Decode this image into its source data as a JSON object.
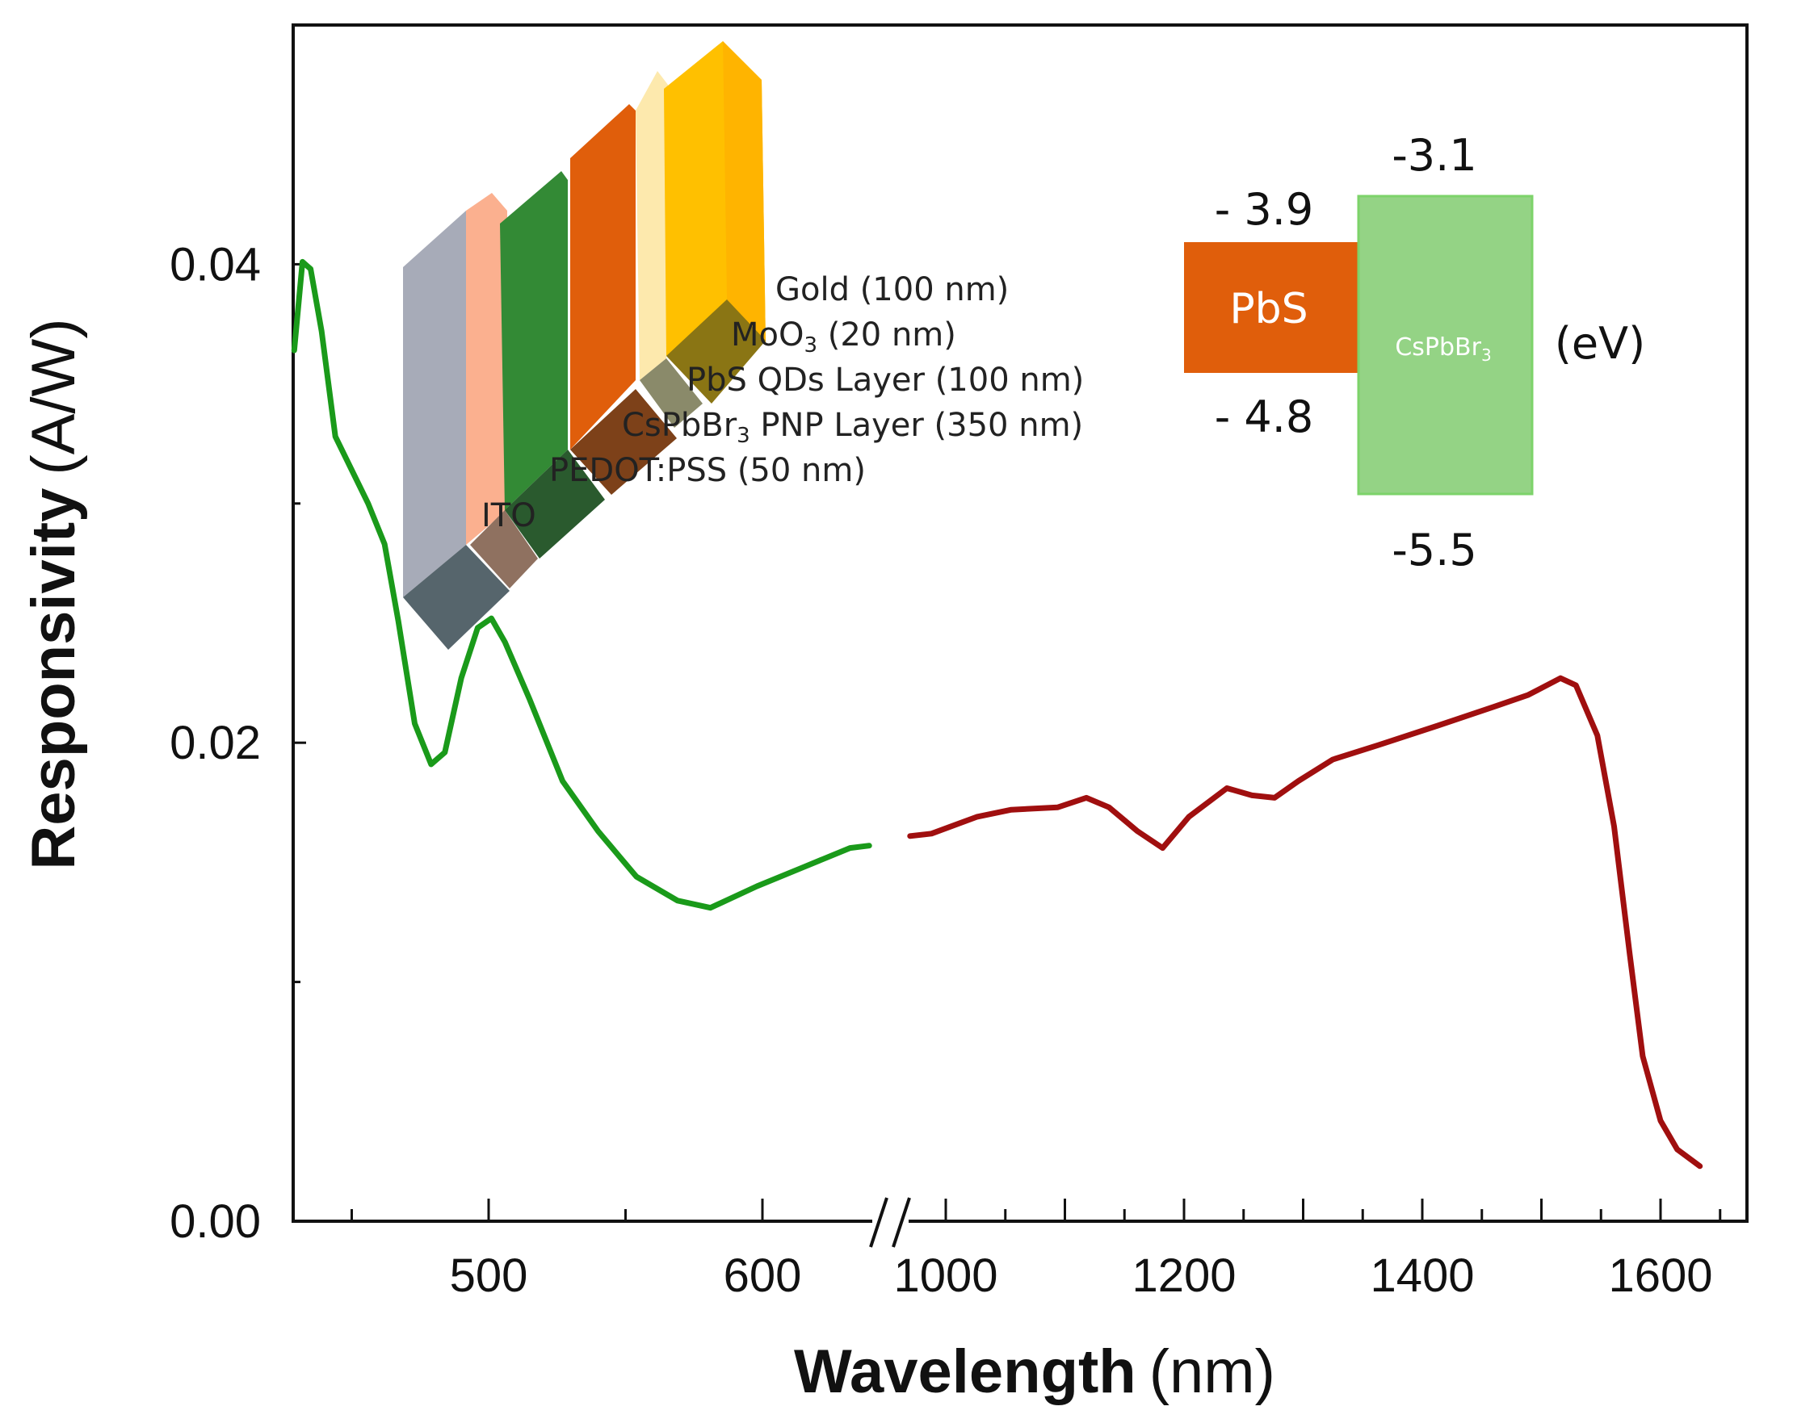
{
  "chart_data": {
    "type": "line",
    "xlabel_bold": "Wavelength",
    "xlabel_unit": "(nm)",
    "ylabel_bold": "Responsivity",
    "ylabel_unit": "(A/W)",
    "ylim": [
      0,
      0.05
    ],
    "y_ticks": [
      "0.00",
      "0.02",
      "0.04"
    ],
    "y_tick_values": [
      0,
      0.02,
      0.04
    ],
    "y_minor_ticks": [
      0.01,
      0.03
    ],
    "x_broken_axis": true,
    "x_segments": [
      {
        "range": [
          429,
          645
        ],
        "ticks": [
          500,
          600
        ],
        "tick_labels": [
          "500",
          "600"
        ],
        "minor_ticks": [
          450,
          550
        ]
      },
      {
        "range": [
          950,
          1672
        ],
        "ticks": [
          1000,
          1200,
          1400,
          1600
        ],
        "tick_labels": [
          "1000",
          "1200",
          "1400",
          "1600"
        ],
        "minor_ticks": [
          1050,
          1100,
          1150,
          1250,
          1300,
          1350,
          1450,
          1500,
          1550,
          1650
        ]
      }
    ],
    "grid": false,
    "series": [
      {
        "color": "#1a9a1a",
        "x": [
          429,
          432,
          435,
          439,
          444,
          450,
          456,
          462,
          467,
          473,
          479,
          484,
          490,
          496,
          501,
          506,
          515,
          527,
          540,
          554,
          569,
          581,
          598,
          615,
          632,
          639
        ],
        "y": [
          0.0364,
          0.0401,
          0.0398,
          0.0372,
          0.0328,
          0.0314,
          0.03,
          0.0283,
          0.0251,
          0.0208,
          0.0191,
          0.0196,
          0.0227,
          0.0248,
          0.0252,
          0.0242,
          0.0218,
          0.0184,
          0.0163,
          0.0144,
          0.0134,
          0.0131,
          0.014,
          0.0148,
          0.0156,
          0.0157
        ]
      },
      {
        "color": "#a00f0f",
        "x": [
          970,
          988,
          1026,
          1055,
          1094,
          1118,
          1137,
          1161,
          1182,
          1204,
          1236,
          1257,
          1276,
          1296,
          1325,
          1363,
          1412,
          1460,
          1489,
          1516,
          1529,
          1547,
          1561,
          1574,
          1585,
          1600,
          1614,
          1633
        ],
        "y": [
          0.0161,
          0.0162,
          0.0169,
          0.0172,
          0.0173,
          0.0177,
          0.0173,
          0.0163,
          0.0156,
          0.0169,
          0.0181,
          0.0178,
          0.0177,
          0.0184,
          0.0193,
          0.0199,
          0.0207,
          0.0215,
          0.022,
          0.0227,
          0.0224,
          0.0203,
          0.0165,
          0.0112,
          0.0069,
          0.0042,
          0.003,
          0.0023
        ]
      }
    ]
  },
  "device_inset": {
    "layers": [
      {
        "label": "Gold (100 nm)",
        "color": "#ffc000"
      },
      {
        "label_main": "MoO",
        "label_sub": "3",
        "label_rest": " (20 nm)",
        "color": "#fde9ad"
      },
      {
        "label": "PbS QDs Layer (100 nm)",
        "color": "#e05e0b"
      },
      {
        "label_main": "CsPbBr",
        "label_sub": "3",
        "label_rest": " PNP Layer (350 nm)",
        "color": "#338a35"
      },
      {
        "label": "PEDOT:PSS (50 nm)",
        "color": "#fbb08f"
      },
      {
        "label": "ITO",
        "color": "#a7abb8"
      }
    ]
  },
  "energy_inset": {
    "pbs": {
      "label": "PbS",
      "lumo": "- 3.9",
      "homo": "- 4.8",
      "color": "#e05e0b"
    },
    "cspbbr3": {
      "label_main": "CsPbBr",
      "label_sub": "3",
      "lumo": "-3.1",
      "homo": "-5.5",
      "color": "#94d385"
    },
    "unit": "(eV)"
  }
}
